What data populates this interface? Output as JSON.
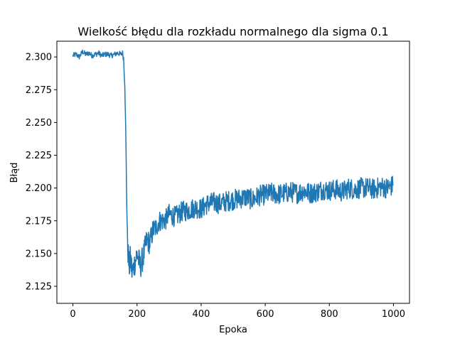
{
  "chart_data": {
    "type": "line",
    "title": "Wielkość błędu dla rozkładu normalnego dla sigma 0.1",
    "xlabel": "Epoka",
    "ylabel": "Błąd",
    "xlim": [
      -50,
      1050
    ],
    "ylim": [
      2.112,
      2.312
    ],
    "xticks": [
      0,
      200,
      400,
      600,
      800,
      1000
    ],
    "yticks": [
      2.125,
      2.15,
      2.175,
      2.2,
      2.225,
      2.25,
      2.275,
      2.3
    ],
    "xtick_labels": [
      "0",
      "200",
      "400",
      "600",
      "800",
      "1000"
    ],
    "ytick_labels": [
      "2.125",
      "2.150",
      "2.175",
      "2.200",
      "2.225",
      "2.250",
      "2.275",
      "2.300"
    ],
    "grid": false,
    "series": [
      {
        "color": "#1f77b4",
        "x": [
          0,
          10,
          20,
          30,
          40,
          50,
          60,
          70,
          80,
          90,
          100,
          110,
          120,
          130,
          140,
          150,
          155,
          158,
          160,
          162,
          165,
          168,
          170,
          175,
          180,
          185,
          190,
          200,
          210,
          220,
          230,
          240,
          250,
          260,
          270,
          280,
          290,
          300,
          320,
          340,
          360,
          380,
          400,
          420,
          440,
          460,
          480,
          500,
          520,
          540,
          560,
          580,
          600,
          620,
          640,
          660,
          680,
          700,
          720,
          740,
          760,
          780,
          800,
          820,
          840,
          860,
          880,
          900,
          920,
          940,
          960,
          980,
          999
        ],
        "y": [
          2.301,
          2.302,
          2.3,
          2.304,
          2.302,
          2.303,
          2.301,
          2.302,
          2.303,
          2.301,
          2.302,
          2.302,
          2.301,
          2.302,
          2.303,
          2.302,
          2.303,
          2.299,
          2.29,
          2.28,
          2.24,
          2.19,
          2.16,
          2.14,
          2.145,
          2.135,
          2.14,
          2.15,
          2.14,
          2.148,
          2.16,
          2.158,
          2.168,
          2.17,
          2.175,
          2.175,
          2.176,
          2.18,
          2.178,
          2.182,
          2.183,
          2.185,
          2.184,
          2.188,
          2.189,
          2.188,
          2.19,
          2.191,
          2.192,
          2.193,
          2.191,
          2.194,
          2.195,
          2.196,
          2.195,
          2.196,
          2.197,
          2.196,
          2.198,
          2.196,
          2.197,
          2.199,
          2.198,
          2.199,
          2.197,
          2.2,
          2.199,
          2.2,
          2.2,
          2.199,
          2.201,
          2.2,
          2.202
        ],
        "noise_amp": [
          0.002,
          0.002,
          0.002,
          0.002,
          0.002,
          0.002,
          0.002,
          0.002,
          0.002,
          0.002,
          0.002,
          0.002,
          0.002,
          0.002,
          0.002,
          0.002,
          0.002,
          0.003,
          0.004,
          0.004,
          0.004,
          0.006,
          0.01,
          0.012,
          0.012,
          0.012,
          0.01,
          0.01,
          0.01,
          0.01,
          0.009,
          0.009,
          0.009,
          0.008,
          0.008,
          0.008,
          0.008,
          0.008,
          0.008,
          0.008,
          0.008,
          0.008,
          0.008,
          0.008,
          0.008,
          0.008,
          0.008,
          0.008,
          0.008,
          0.008,
          0.008,
          0.008,
          0.008,
          0.008,
          0.008,
          0.008,
          0.008,
          0.008,
          0.008,
          0.008,
          0.008,
          0.008,
          0.008,
          0.008,
          0.008,
          0.008,
          0.008,
          0.008,
          0.008,
          0.008,
          0.008,
          0.008,
          0.008
        ]
      }
    ]
  }
}
